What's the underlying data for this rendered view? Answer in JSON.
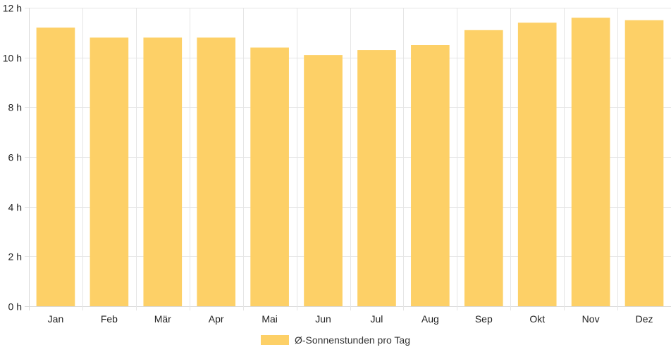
{
  "chart_data": {
    "type": "bar",
    "categories": [
      "Jan",
      "Feb",
      "Mär",
      "Apr",
      "Mai",
      "Jun",
      "Jul",
      "Aug",
      "Sep",
      "Okt",
      "Nov",
      "Dez"
    ],
    "series": [
      {
        "name": "Ø-Sonnenstunden pro Tag",
        "values": [
          11.2,
          10.8,
          10.8,
          10.8,
          10.4,
          10.1,
          10.3,
          10.5,
          11.1,
          11.4,
          11.6,
          11.5
        ]
      }
    ],
    "ylim": [
      0,
      12
    ],
    "yticks": [
      {
        "value": 0,
        "label": "0 h"
      },
      {
        "value": 2,
        "label": "2 h"
      },
      {
        "value": 4,
        "label": "4 h"
      },
      {
        "value": 6,
        "label": "6 h"
      },
      {
        "value": 8,
        "label": "8 h"
      },
      {
        "value": 10,
        "label": "10 h"
      },
      {
        "value": 12,
        "label": "12 h"
      }
    ],
    "grid": true,
    "legend_position": "bottom",
    "colors": {
      "bar": "#fdd067",
      "grid": "#e5e5e5",
      "axis": "#d9d9d9"
    }
  }
}
